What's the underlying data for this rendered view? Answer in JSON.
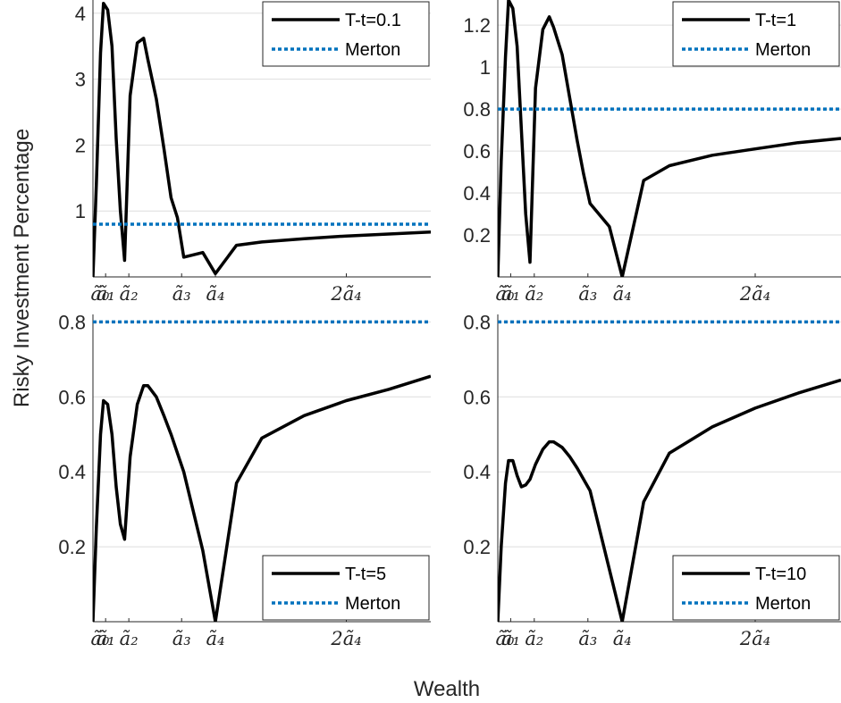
{
  "figure": {
    "ylabel": "Risky Investment Percentage",
    "xlabel": "Wealth"
  },
  "chart_data": [
    {
      "type": "line",
      "panel": "top-left",
      "xlim": [
        0,
        8
      ],
      "ylim": [
        0,
        4.2
      ],
      "yticks": [
        1,
        2,
        3,
        4
      ],
      "xticks": [
        {
          "v": 0.0,
          "label": "ã₀"
        },
        {
          "v": 0.3,
          "label": "ã₁"
        },
        {
          "v": 0.85,
          "label": "ã₂"
        },
        {
          "v": 2.1,
          "label": "ã₃"
        },
        {
          "v": 2.9,
          "label": "ã₄"
        },
        {
          "v": 6.0,
          "label": "2ã₄"
        }
      ],
      "legend": "top-right",
      "series": [
        {
          "name": "T-t=0.1",
          "x": [
            0.0,
            0.08,
            0.18,
            0.25,
            0.35,
            0.45,
            0.55,
            0.65,
            0.75,
            0.88,
            1.05,
            1.2,
            1.3,
            1.5,
            1.68,
            1.85,
            2.0,
            2.15,
            2.6,
            2.9,
            3.4,
            4.0,
            5.0,
            6.0,
            7.0,
            8.0
          ],
          "y": [
            0.0,
            1.4,
            3.4,
            4.15,
            4.05,
            3.5,
            2.1,
            1.0,
            0.25,
            2.75,
            3.55,
            3.62,
            3.3,
            2.7,
            1.95,
            1.2,
            0.9,
            0.3,
            0.37,
            0.05,
            0.48,
            0.53,
            0.58,
            0.62,
            0.65,
            0.68
          ]
        },
        {
          "name": "Merton",
          "x": [
            0,
            8
          ],
          "y": [
            0.8,
            0.8
          ]
        }
      ]
    },
    {
      "type": "line",
      "panel": "top-right",
      "xlim": [
        0,
        8
      ],
      "ylim": [
        0,
        1.32
      ],
      "yticks": [
        0.2,
        0.4,
        0.6,
        0.8,
        1,
        1.2
      ],
      "xticks": [
        {
          "v": 0.0,
          "label": "ã₀"
        },
        {
          "v": 0.3,
          "label": "ã₁"
        },
        {
          "v": 0.85,
          "label": "ã₂"
        },
        {
          "v": 2.1,
          "label": "ã₃"
        },
        {
          "v": 2.9,
          "label": "ã₄"
        },
        {
          "v": 6.0,
          "label": "2ã₄"
        }
      ],
      "legend": "top-right",
      "series": [
        {
          "name": "T-t=1",
          "x": [
            0.0,
            0.08,
            0.18,
            0.25,
            0.35,
            0.45,
            0.55,
            0.65,
            0.75,
            0.88,
            1.05,
            1.2,
            1.3,
            1.5,
            1.68,
            1.85,
            2.0,
            2.15,
            2.6,
            2.9,
            3.4,
            4.0,
            5.0,
            6.0,
            7.0,
            8.0
          ],
          "y": [
            0.0,
            0.55,
            1.05,
            1.32,
            1.28,
            1.1,
            0.7,
            0.3,
            0.07,
            0.9,
            1.18,
            1.24,
            1.19,
            1.06,
            0.85,
            0.65,
            0.49,
            0.35,
            0.24,
            0.0,
            0.46,
            0.53,
            0.58,
            0.61,
            0.64,
            0.66
          ]
        },
        {
          "name": "Merton",
          "x": [
            0,
            8
          ],
          "y": [
            0.8,
            0.8
          ]
        }
      ]
    },
    {
      "type": "line",
      "panel": "bottom-left",
      "xlim": [
        0,
        8
      ],
      "ylim": [
        0,
        0.82
      ],
      "yticks": [
        0.2,
        0.4,
        0.6,
        0.8
      ],
      "xticks": [
        {
          "v": 0.0,
          "label": "ã₀"
        },
        {
          "v": 0.3,
          "label": "ã₁"
        },
        {
          "v": 0.85,
          "label": "ã₂"
        },
        {
          "v": 2.1,
          "label": "ã₃"
        },
        {
          "v": 2.9,
          "label": "ã₄"
        },
        {
          "v": 6.0,
          "label": "2ã₄"
        }
      ],
      "legend": "bottom-right",
      "series": [
        {
          "name": "T-t=5",
          "x": [
            0.0,
            0.08,
            0.18,
            0.25,
            0.35,
            0.45,
            0.55,
            0.65,
            0.75,
            0.88,
            1.05,
            1.2,
            1.3,
            1.5,
            1.68,
            1.85,
            2.0,
            2.15,
            2.6,
            2.9,
            3.4,
            4.0,
            5.0,
            6.0,
            7.0,
            8.0
          ],
          "y": [
            0.0,
            0.25,
            0.5,
            0.59,
            0.58,
            0.5,
            0.36,
            0.26,
            0.22,
            0.44,
            0.58,
            0.63,
            0.63,
            0.6,
            0.55,
            0.5,
            0.45,
            0.4,
            0.19,
            0.0,
            0.37,
            0.49,
            0.55,
            0.59,
            0.62,
            0.655
          ]
        },
        {
          "name": "Merton",
          "x": [
            0,
            8
          ],
          "y": [
            0.8,
            0.8
          ]
        }
      ]
    },
    {
      "type": "line",
      "panel": "bottom-right",
      "xlim": [
        0,
        8
      ],
      "ylim": [
        0,
        0.82
      ],
      "yticks": [
        0.2,
        0.4,
        0.6,
        0.8
      ],
      "xticks": [
        {
          "v": 0.0,
          "label": "ã₀"
        },
        {
          "v": 0.3,
          "label": "ã₁"
        },
        {
          "v": 0.85,
          "label": "ã₂"
        },
        {
          "v": 2.1,
          "label": "ã₃"
        },
        {
          "v": 2.9,
          "label": "ã₄"
        },
        {
          "v": 6.0,
          "label": "2ã₄"
        }
      ],
      "legend": "bottom-right",
      "series": [
        {
          "name": "T-t=10",
          "x": [
            0.0,
            0.08,
            0.18,
            0.25,
            0.35,
            0.45,
            0.55,
            0.65,
            0.75,
            0.88,
            1.05,
            1.2,
            1.3,
            1.5,
            1.68,
            1.85,
            2.0,
            2.15,
            2.6,
            2.9,
            3.4,
            4.0,
            5.0,
            6.0,
            7.0,
            8.0
          ],
          "y": [
            0.0,
            0.2,
            0.37,
            0.43,
            0.43,
            0.39,
            0.36,
            0.365,
            0.38,
            0.42,
            0.46,
            0.48,
            0.48,
            0.465,
            0.44,
            0.41,
            0.38,
            0.35,
            0.14,
            0.0,
            0.32,
            0.45,
            0.52,
            0.57,
            0.61,
            0.645
          ]
        },
        {
          "name": "Merton",
          "x": [
            0,
            8
          ],
          "y": [
            0.8,
            0.8
          ]
        }
      ]
    }
  ]
}
